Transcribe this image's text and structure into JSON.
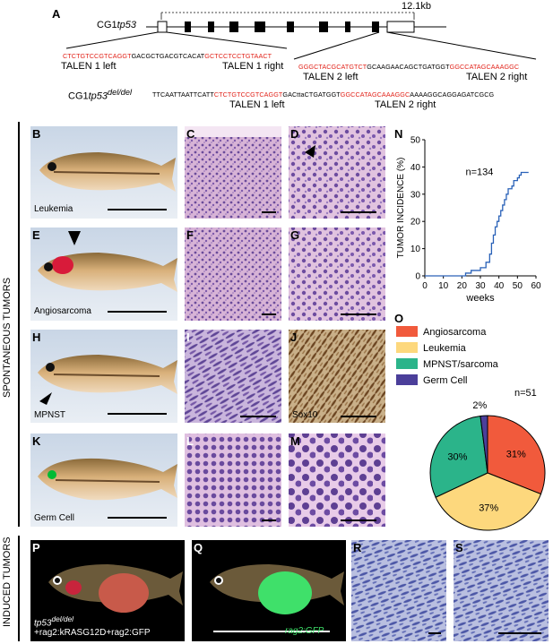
{
  "panel_letters": {
    "A": "A",
    "B": "B",
    "C": "C",
    "D": "D",
    "E": "E",
    "F": "F",
    "G": "G",
    "H": "H",
    "I": "I",
    "J": "J",
    "K": "K",
    "L": "L",
    "M": "M",
    "N": "N",
    "O": "O",
    "P": "P",
    "Q": "Q",
    "R": "R",
    "S": "S"
  },
  "gene_map": {
    "gene_prefix": "CG1",
    "gene_name": "tp53",
    "length_label": "12.1kb"
  },
  "sequences": {
    "talen1_left_seq": "CTCTGTCCGTCAGGT",
    "talen1_spacer": "GACGCTGACGTCACAT",
    "talen1_right_seq": "GCTCCTCCTGTAACT",
    "talen2_left_seq": "GGGCTACGCATGTCT",
    "talen2_spacer": "GCAAGAACAGCTGATGGT",
    "talen2_right_seq": "GGCCATAGCAAAGGC",
    "deletion_prefix": "CG1",
    "deletion_gene": "tp53",
    "deletion_sup": "del/del",
    "del_part1": "TTCAATTAATTCATT",
    "del_part2": "CTCTGTCCGTCAGGT",
    "del_part3": "GACttaCTGATGGT",
    "del_part4": "GGCCATAGCAAAGGC",
    "del_part5": "AAAAGGCAGGAGATCGCG"
  },
  "talen_labels": {
    "talen1_left": "TALEN 1 left",
    "talen1_right": "TALEN 1 right",
    "talen2_left": "TALEN 2 left",
    "talen2_right": "TALEN 2 right",
    "bottom_talen1_left": "TALEN 1 left",
    "bottom_talen2_right": "TALEN 2 right"
  },
  "side_labels": {
    "spontaneous": "SPONTANEOUS TUMORS",
    "induced": "INDUCED TUMORS"
  },
  "fish_captions": {
    "B": "Leukemia",
    "E": "Angiosarcoma",
    "H": "MPNST",
    "K": "Germ Cell",
    "J": "Sox10",
    "Q": "rag2:GFP",
    "P_line1_gene": "tp53",
    "P_line1_sup": "del/del",
    "P_line2": "+rag2:kRASG12D+rag2:GFP"
  },
  "colors": {
    "talen_red": "#e2231a",
    "km_line": "#2a62b8",
    "angiosarcoma": "#f15a3c",
    "leukemia": "#fdd87d",
    "mpnst": "#2bb48a",
    "germ_cell": "#4b3f9a",
    "he_pink": "#c98fbf",
    "he_purple": "#7c5aa8",
    "ihc_brown": "#8b5a2b",
    "gfp_green": "#3fe06a"
  },
  "chart_data": [
    {
      "type": "line",
      "panel": "N",
      "title": "",
      "xlabel": "weeks",
      "ylabel": "TUMOR INCIDENCE (%)",
      "xlim": [
        0,
        60
      ],
      "ylim": [
        0,
        50
      ],
      "xticks": [
        0,
        10,
        20,
        30,
        40,
        50,
        60
      ],
      "yticks": [
        0,
        10,
        20,
        30,
        40,
        50
      ],
      "annotation": "n=134",
      "series": [
        {
          "x": [
            0,
            22,
            22,
            25,
            25,
            30,
            30,
            33,
            33,
            35,
            35,
            36,
            36,
            37,
            37,
            38,
            38,
            39,
            39,
            40,
            40,
            41,
            41,
            42,
            42,
            43,
            43,
            44,
            44,
            45,
            45,
            47,
            47,
            48,
            48,
            50,
            50,
            51,
            51,
            52,
            52,
            53,
            53,
            54,
            54,
            56
          ],
          "y": [
            0,
            0,
            1,
            1,
            2,
            2,
            3,
            3,
            5,
            5,
            8,
            8,
            12,
            12,
            15,
            15,
            18,
            18,
            20,
            20,
            22,
            22,
            24,
            24,
            26,
            26,
            28,
            28,
            30,
            30,
            32,
            32,
            33,
            33,
            35,
            35,
            36,
            36,
            37,
            37,
            38,
            38,
            38,
            38,
            38,
            38
          ]
        }
      ]
    },
    {
      "type": "pie",
      "panel": "O",
      "annotation": "n=51",
      "categories": [
        "Angiosarcoma",
        "Leukemia",
        "MPNST/sarcoma",
        "Germ Cell"
      ],
      "values": [
        31,
        37,
        30,
        2
      ],
      "value_labels": [
        "31%",
        "37%",
        "30%",
        "2%"
      ],
      "legend": "top-left"
    }
  ]
}
